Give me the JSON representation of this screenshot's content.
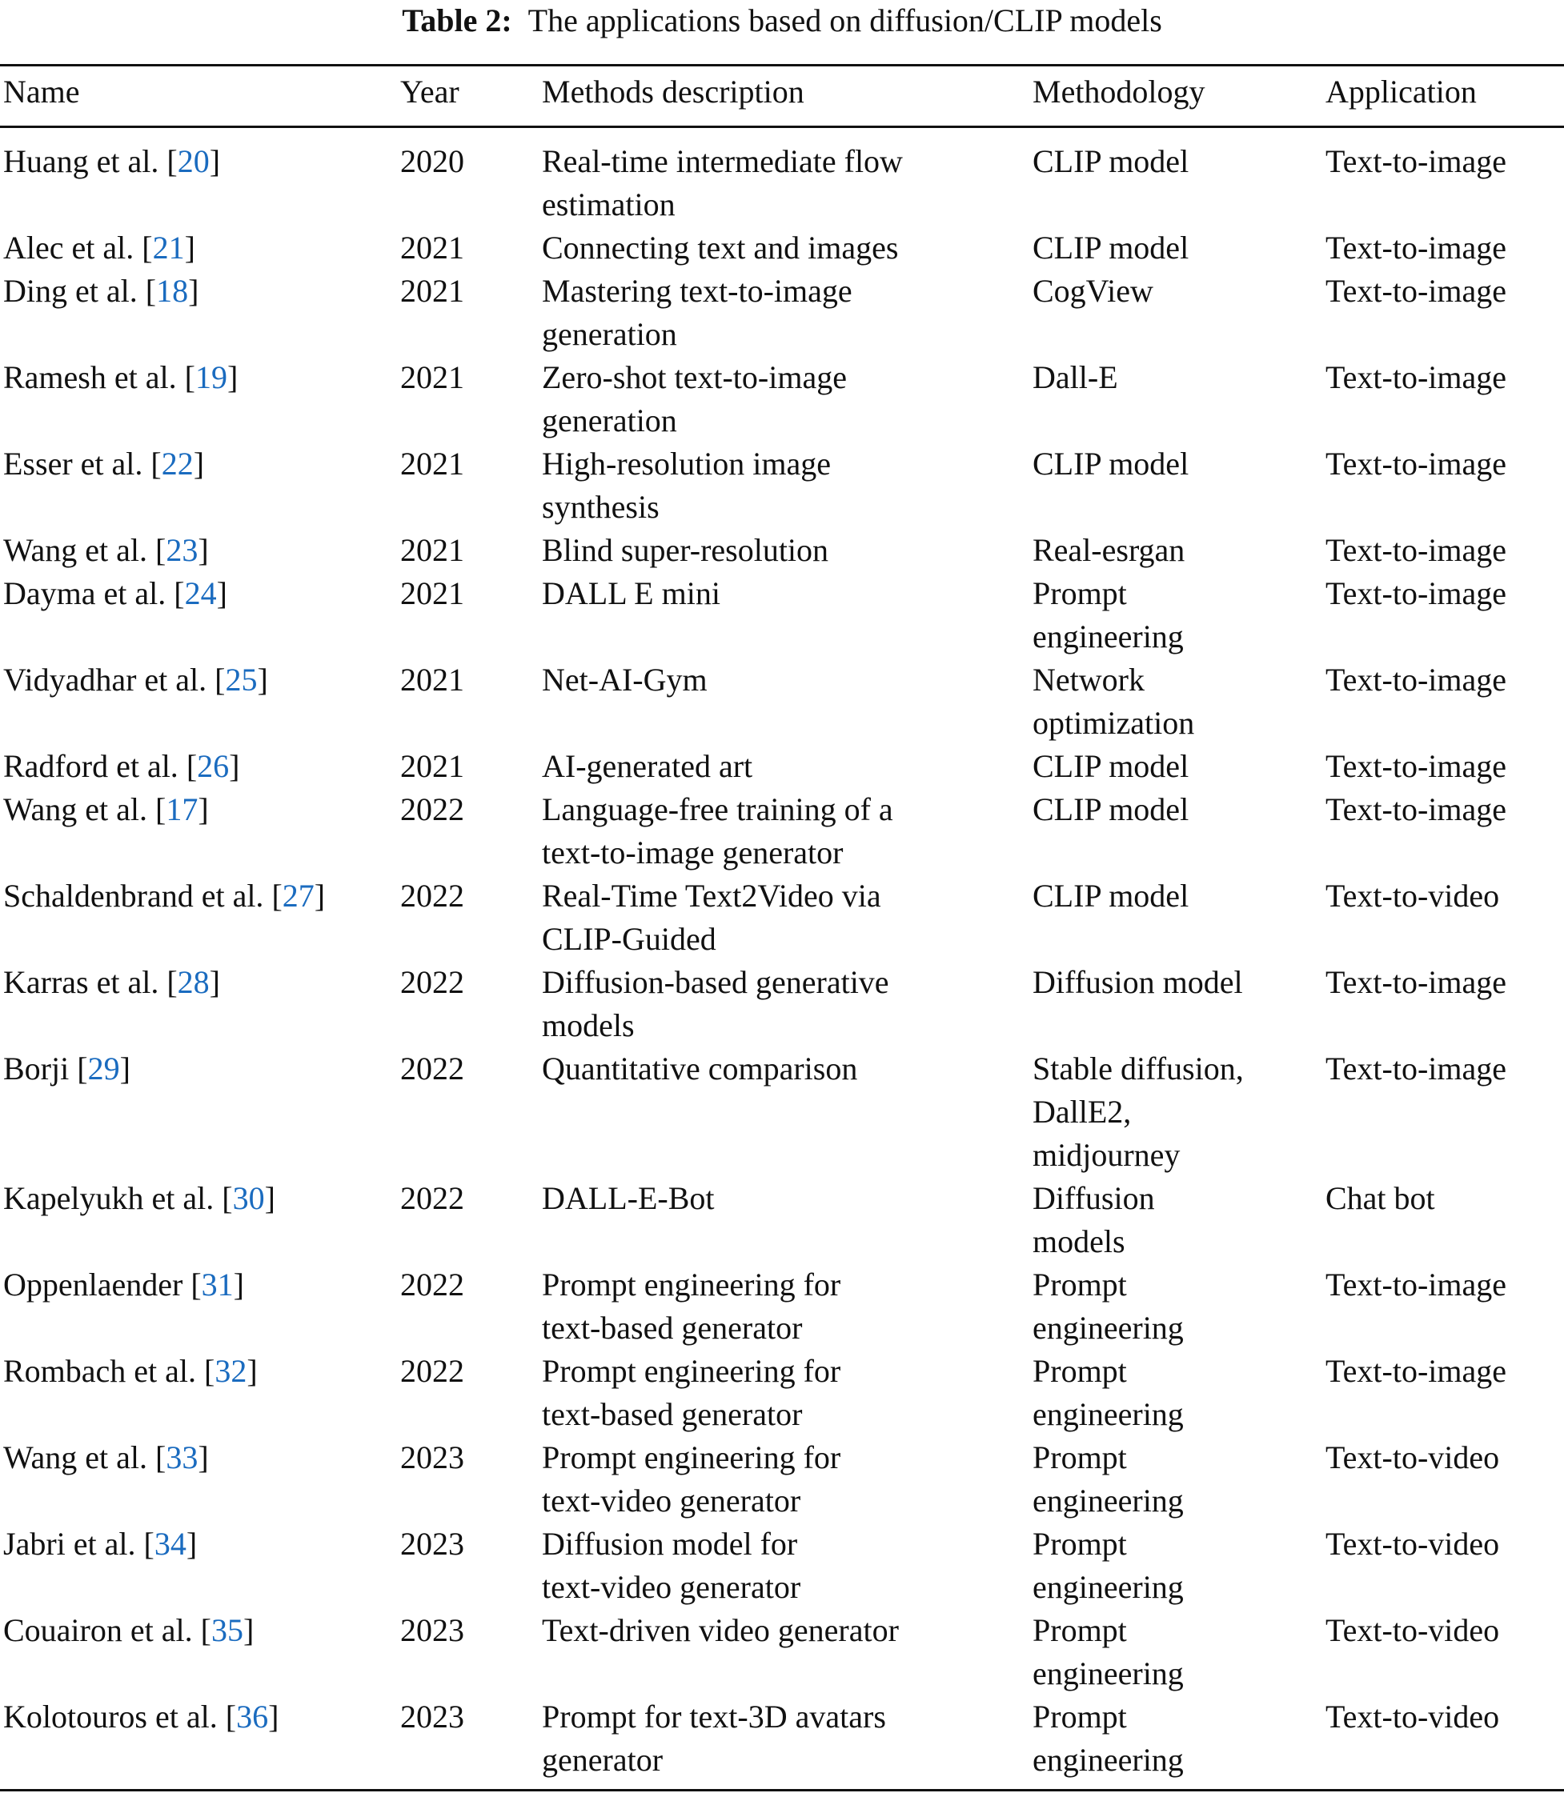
{
  "caption": {
    "label": "Table 2:",
    "text": "The applications based on diffusion/CLIP models"
  },
  "colors": {
    "text": "#111111",
    "reference_link": "#1a6bbf",
    "rule": "#111111"
  },
  "table": {
    "headers": [
      "Name",
      "Year",
      "Methods description",
      "Methodology",
      "Application"
    ],
    "rows": [
      {
        "author": "Huang et al.",
        "ref": "20",
        "year": "2020",
        "description": "Real-time intermediate flow\nestimation",
        "methodology": "CLIP model",
        "application": "Text-to-image",
        "lines": 2
      },
      {
        "author": "Alec et al.",
        "ref": "21",
        "year": "2021",
        "description": "Connecting text and images",
        "methodology": "CLIP model",
        "application": "Text-to-image",
        "lines": 1
      },
      {
        "author": "Ding et al.",
        "ref": "18",
        "year": "2021",
        "description": "Mastering text-to-image\ngeneration",
        "methodology": "CogView",
        "application": "Text-to-image",
        "lines": 2
      },
      {
        "author": "Ramesh et al.",
        "ref": "19",
        "year": "2021",
        "description": "Zero-shot text-to-image\ngeneration",
        "methodology": "Dall-E",
        "application": "Text-to-image",
        "lines": 2
      },
      {
        "author": "Esser et al.",
        "ref": "22",
        "year": "2021",
        "description": "High-resolution image\nsynthesis",
        "methodology": "CLIP model",
        "application": "Text-to-image",
        "lines": 2
      },
      {
        "author": "Wang et al.",
        "ref": "23",
        "year": "2021",
        "description": "Blind super-resolution",
        "methodology": "Real-esrgan",
        "application": "Text-to-image",
        "lines": 1
      },
      {
        "author": "Dayma et al.",
        "ref": "24",
        "year": "2021",
        "description": "DALL E mini",
        "methodology": "Prompt\nengineering",
        "application": "Text-to-image",
        "lines": 2
      },
      {
        "author": "Vidyadhar et al.",
        "ref": "25",
        "year": "2021",
        "description": "Net-AI-Gym",
        "methodology": "Network\noptimization",
        "application": "Text-to-image",
        "lines": 2
      },
      {
        "author": "Radford et al.",
        "ref": "26",
        "year": "2021",
        "description": "AI-generated art",
        "methodology": "CLIP model",
        "application": "Text-to-image",
        "lines": 1
      },
      {
        "author": "Wang et al.",
        "ref": "17",
        "year": "2022",
        "description": "Language-free training of a\ntext-to-image generator",
        "methodology": "CLIP model",
        "application": "Text-to-image",
        "lines": 2
      },
      {
        "author": "Schaldenbrand et al.",
        "ref": "27",
        "year": "2022",
        "description": "Real-Time Text2Video via\nCLIP-Guided",
        "methodology": "CLIP model",
        "application": "Text-to-video",
        "lines": 2
      },
      {
        "author": "Karras et al.",
        "ref": "28",
        "year": "2022",
        "description": "Diffusion-based generative\nmodels",
        "methodology": "Diffusion model",
        "application": "Text-to-image",
        "lines": 2
      },
      {
        "author": "Borji",
        "ref": "29",
        "year": "2022",
        "description": "Quantitative comparison",
        "methodology": "Stable diffusion,\nDallE2,\nmidjourney",
        "application": "Text-to-image",
        "lines": 3
      },
      {
        "author": "Kapelyukh et al.",
        "ref": "30",
        "year": "2022",
        "description": "DALL-E-Bot",
        "methodology": "Diffusion\nmodels",
        "application": "Chat bot",
        "lines": 2
      },
      {
        "author": "Oppenlaender",
        "ref": "31",
        "year": "2022",
        "description": "Prompt engineering for\ntext-based generator",
        "methodology": "Prompt\nengineering",
        "application": "Text-to-image",
        "lines": 2
      },
      {
        "author": "Rombach et al.",
        "ref": "32",
        "year": "2022",
        "description": "Prompt engineering for\ntext-based generator",
        "methodology": "Prompt\nengineering",
        "application": "Text-to-image",
        "lines": 2
      },
      {
        "author": "Wang et al.",
        "ref": "33",
        "year": "2023",
        "description": "Prompt engineering for\ntext-video generator",
        "methodology": "Prompt\nengineering",
        "application": "Text-to-video",
        "lines": 2
      },
      {
        "author": "Jabri et al.",
        "ref": "34",
        "year": "2023",
        "description": "Diffusion model for\ntext-video generator",
        "methodology": "Prompt\nengineering",
        "application": "Text-to-video",
        "lines": 2
      },
      {
        "author": "Couairon et al.",
        "ref": "35",
        "year": "2023",
        "description": "Text-driven video generator",
        "methodology": "Prompt\nengineering",
        "application": "Text-to-video",
        "lines": 2
      },
      {
        "author": "Kolotouros et al.",
        "ref": "36",
        "year": "2023",
        "description": "Prompt for text-3D avatars\ngenerator",
        "methodology": "Prompt\nengineering",
        "application": "Text-to-video",
        "lines": 2
      }
    ]
  }
}
